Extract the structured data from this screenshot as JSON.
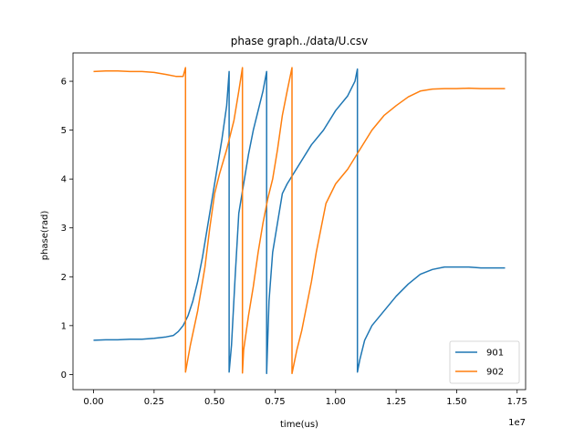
{
  "chart_data": {
    "type": "line",
    "title": "phase graph../data/U.csv",
    "xlabel": "time(us)",
    "ylabel": "phase(rad)",
    "x_offset_label": "1e7",
    "xlim": [
      -0.085,
      1.785
    ],
    "ylim": [
      -0.31,
      6.58
    ],
    "x_ticks": [
      0.0,
      0.25,
      0.5,
      0.75,
      1.0,
      1.25,
      1.5,
      1.75
    ],
    "x_tick_labels": [
      "0.00",
      "0.25",
      "0.50",
      "0.75",
      "1.00",
      "1.25",
      "1.50",
      "1.75"
    ],
    "y_ticks": [
      0,
      1,
      2,
      3,
      4,
      5,
      6
    ],
    "y_tick_labels": [
      "0",
      "1",
      "2",
      "3",
      "4",
      "5",
      "6"
    ],
    "legend_position": "lower-right",
    "grid": false,
    "series": [
      {
        "name": "901",
        "color": "#1f77b4",
        "points": [
          [
            0.0,
            0.7
          ],
          [
            0.05,
            0.71
          ],
          [
            0.1,
            0.71
          ],
          [
            0.15,
            0.72
          ],
          [
            0.2,
            0.72
          ],
          [
            0.25,
            0.74
          ],
          [
            0.3,
            0.77
          ],
          [
            0.33,
            0.8
          ],
          [
            0.35,
            0.88
          ],
          [
            0.37,
            1.0
          ],
          [
            0.39,
            1.2
          ],
          [
            0.41,
            1.5
          ],
          [
            0.43,
            1.9
          ],
          [
            0.45,
            2.4
          ],
          [
            0.47,
            3.0
          ],
          [
            0.49,
            3.6
          ],
          [
            0.51,
            4.2
          ],
          [
            0.53,
            4.8
          ],
          [
            0.55,
            5.5
          ],
          [
            0.56,
            6.2
          ],
          [
            0.56,
            0.05
          ],
          [
            0.57,
            0.6
          ],
          [
            0.585,
            2.0
          ],
          [
            0.6,
            3.3
          ],
          [
            0.62,
            3.9
          ],
          [
            0.64,
            4.5
          ],
          [
            0.66,
            5.0
          ],
          [
            0.68,
            5.4
          ],
          [
            0.7,
            5.8
          ],
          [
            0.715,
            6.2
          ],
          [
            0.715,
            0.02
          ],
          [
            0.725,
            1.5
          ],
          [
            0.74,
            2.5
          ],
          [
            0.76,
            3.1
          ],
          [
            0.78,
            3.7
          ],
          [
            0.8,
            3.9
          ],
          [
            0.85,
            4.3
          ],
          [
            0.9,
            4.7
          ],
          [
            0.95,
            5.0
          ],
          [
            1.0,
            5.4
          ],
          [
            1.05,
            5.7
          ],
          [
            1.08,
            6.0
          ],
          [
            1.09,
            6.25
          ],
          [
            1.09,
            0.05
          ],
          [
            1.1,
            0.3
          ],
          [
            1.12,
            0.7
          ],
          [
            1.15,
            1.0
          ],
          [
            1.2,
            1.3
          ],
          [
            1.25,
            1.6
          ],
          [
            1.3,
            1.85
          ],
          [
            1.35,
            2.05
          ],
          [
            1.4,
            2.15
          ],
          [
            1.45,
            2.2
          ],
          [
            1.5,
            2.2
          ],
          [
            1.55,
            2.2
          ],
          [
            1.6,
            2.18
          ],
          [
            1.65,
            2.18
          ],
          [
            1.7,
            2.18
          ]
        ]
      },
      {
        "name": "902",
        "color": "#ff7f0e",
        "points": [
          [
            0.0,
            6.2
          ],
          [
            0.05,
            6.21
          ],
          [
            0.1,
            6.21
          ],
          [
            0.15,
            6.2
          ],
          [
            0.2,
            6.2
          ],
          [
            0.25,
            6.18
          ],
          [
            0.3,
            6.14
          ],
          [
            0.34,
            6.1
          ],
          [
            0.37,
            6.1
          ],
          [
            0.38,
            6.28
          ],
          [
            0.38,
            0.05
          ],
          [
            0.4,
            0.6
          ],
          [
            0.43,
            1.3
          ],
          [
            0.46,
            2.2
          ],
          [
            0.48,
            3.0
          ],
          [
            0.5,
            3.7
          ],
          [
            0.52,
            4.1
          ],
          [
            0.55,
            4.6
          ],
          [
            0.58,
            5.2
          ],
          [
            0.6,
            5.8
          ],
          [
            0.615,
            6.28
          ],
          [
            0.615,
            0.03
          ],
          [
            0.62,
            0.5
          ],
          [
            0.64,
            1.2
          ],
          [
            0.66,
            1.8
          ],
          [
            0.68,
            2.5
          ],
          [
            0.7,
            3.1
          ],
          [
            0.72,
            3.6
          ],
          [
            0.74,
            4.0
          ],
          [
            0.76,
            4.6
          ],
          [
            0.78,
            5.3
          ],
          [
            0.8,
            5.8
          ],
          [
            0.82,
            6.28
          ],
          [
            0.82,
            0.02
          ],
          [
            0.84,
            0.5
          ],
          [
            0.86,
            0.9
          ],
          [
            0.88,
            1.4
          ],
          [
            0.9,
            1.9
          ],
          [
            0.92,
            2.5
          ],
          [
            0.94,
            3.0
          ],
          [
            0.96,
            3.5
          ],
          [
            1.0,
            3.9
          ],
          [
            1.05,
            4.2
          ],
          [
            1.1,
            4.6
          ],
          [
            1.15,
            5.0
          ],
          [
            1.2,
            5.3
          ],
          [
            1.25,
            5.5
          ],
          [
            1.3,
            5.68
          ],
          [
            1.35,
            5.8
          ],
          [
            1.4,
            5.84
          ],
          [
            1.45,
            5.85
          ],
          [
            1.5,
            5.85
          ],
          [
            1.55,
            5.86
          ],
          [
            1.6,
            5.85
          ],
          [
            1.65,
            5.85
          ],
          [
            1.7,
            5.85
          ]
        ]
      }
    ]
  }
}
